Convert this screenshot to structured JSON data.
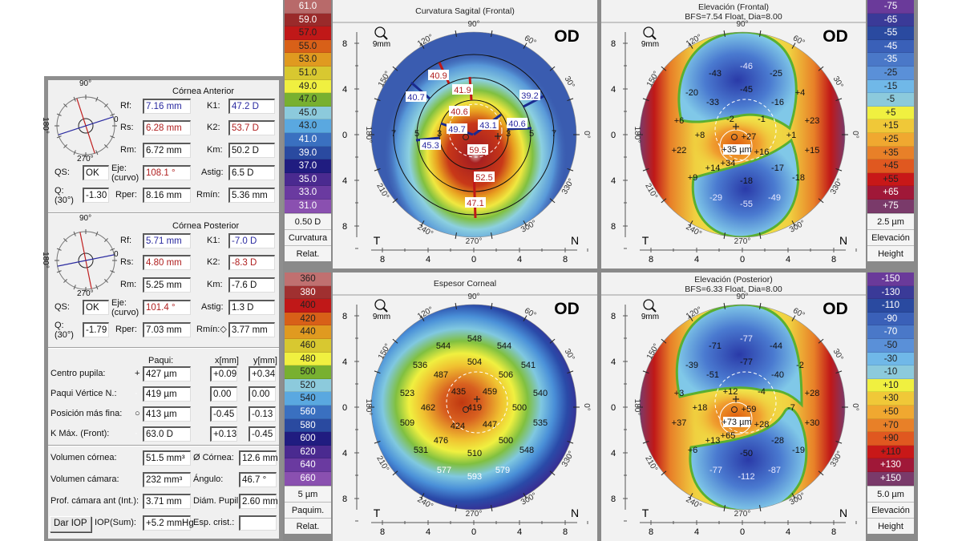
{
  "cornea_anterior": {
    "title": "Córnea Anterior",
    "compass": {
      "top": "90°",
      "bottom": "270°",
      "left": "180°",
      "right": "0"
    },
    "fields": [
      {
        "label": "Rf:",
        "value": "7.16 mm",
        "color": "#2a2aa0"
      },
      {
        "label": "K1:",
        "value": "47.2 D",
        "color": "#2a2aa0"
      },
      {
        "label": "Rs:",
        "value": "6.28 mm",
        "color": "#b02020"
      },
      {
        "label": "K2:",
        "value": "53.7 D",
        "color": "#b02020"
      },
      {
        "label": "Rm:",
        "value": "6.72 mm"
      },
      {
        "label": "Km:",
        "value": "50.2 D"
      },
      {
        "label": "QS:",
        "value": "OK"
      },
      {
        "label": "Eje:\n(curvo)",
        "value": "108.1 °",
        "color": "#b02020"
      },
      {
        "label": "Astig:",
        "value": "6.5 D"
      },
      {
        "label": "Q:\n(30°)",
        "value": "-1.30"
      },
      {
        "label": "Rper:",
        "value": "8.16 mm"
      },
      {
        "label": "Rmín:",
        "value": "5.36 mm"
      }
    ]
  },
  "cornea_posterior": {
    "title": "Córnea Posterior",
    "compass": {
      "top": "90°",
      "bottom": "270°",
      "left": "180°",
      "right": "0"
    },
    "fields": [
      {
        "label": "Rf:",
        "value": "5.71 mm",
        "color": "#2a2aa0"
      },
      {
        "label": "K1:",
        "value": "-7.0 D",
        "color": "#2a2aa0"
      },
      {
        "label": "Rs:",
        "value": "4.80 mm",
        "color": "#b02020"
      },
      {
        "label": "K2:",
        "value": "-8.3 D",
        "color": "#b02020"
      },
      {
        "label": "Rm:",
        "value": "5.25 mm"
      },
      {
        "label": "Km:",
        "value": "-7.6 D"
      },
      {
        "label": "QS:",
        "value": "OK"
      },
      {
        "label": "Eje:\n(curvo)",
        "value": "101.4 °",
        "color": "#b02020"
      },
      {
        "label": "Astig:",
        "value": "1.3 D"
      },
      {
        "label": "Q:\n(30°)",
        "value": "-1.79"
      },
      {
        "label": "Rper:",
        "value": "7.03 mm"
      },
      {
        "label": "Rmín:◇",
        "value": "3.77 mm"
      }
    ]
  },
  "pachy": {
    "headers": [
      "Paqui:",
      "x[mm]",
      "y[mm]"
    ],
    "rows": [
      {
        "label": "Centro pupila:",
        "marker": "+",
        "value": "427 µm",
        "x": "+0.09",
        "y": "+0.34"
      },
      {
        "label": "Paqui Vértice N.:",
        "marker": "·",
        "value": "419 µm",
        "x": "0.00",
        "y": "0.00"
      },
      {
        "label": "Posición más fina:",
        "marker": "○",
        "value": "413 µm",
        "x": "-0.45",
        "y": "-0.13"
      },
      {
        "label": "K Máx. (Front):",
        "marker": "·",
        "value": "63.0 D",
        "x": "+0.13",
        "y": "-0.45"
      }
    ]
  },
  "volumes": {
    "rows": [
      {
        "label": "Volumen córnea:",
        "value": "51.5 mm³",
        "label2": "Ø Córnea:",
        "value2": "12.6 mm"
      },
      {
        "label": "Volumen cámara:",
        "value": "232 mm³",
        "label2": "Ángulo:",
        "value2": "46.7 °"
      },
      {
        "label": "Prof. cámara ant (Int.):",
        "value": "3.71 mm",
        "label2": "Diám. Pupil:",
        "value2": "2.60 mm"
      },
      {
        "label": "IOP(Sum):",
        "value": "+5.2 mmHg",
        "label2": "Esp. crist.:",
        "value2": ""
      }
    ],
    "iop_button": "Dar IOP"
  },
  "scales": [
    {
      "labels": [
        "61.0",
        "59.0",
        "57.0",
        "55.0",
        "53.0",
        "51.0",
        "49.0",
        "47.0",
        "45.0",
        "43.0",
        "41.0",
        "39.0",
        "37.0",
        "35.0",
        "33.0",
        "31.0"
      ],
      "colors": [
        "#b86a6a",
        "#9a2a2a",
        "#c01818",
        "#d86018",
        "#e09a20",
        "#d8c830",
        "#f0f040",
        "#78b030",
        "#8ccadc",
        "#5aa8e0",
        "#3a70c0",
        "#2a4aa0",
        "#201c80",
        "#4a2a90",
        "#6a3aa0",
        "#8a50b0"
      ],
      "footer": [
        "0.50 D",
        "Curvatura",
        "Relat."
      ]
    },
    {
      "labels": [
        "-75",
        "-65",
        "-55",
        "-45",
        "-35",
        "-25",
        "-15",
        "-5",
        "+5",
        "+15",
        "+25",
        "+35",
        "+45",
        "+55",
        "+65",
        "+75"
      ],
      "colors": [
        "#6a3a9a",
        "#3a3a98",
        "#2a4aa0",
        "#3a60b8",
        "#4a78c8",
        "#5a90d8",
        "#70b8e8",
        "#8ccadc",
        "#f0f040",
        "#f0c838",
        "#f0a830",
        "#e88028",
        "#e05820",
        "#c81818",
        "#a01838",
        "#7a3a6a"
      ],
      "footer": [
        "2.5 µm",
        "Elevación",
        "Height"
      ]
    },
    {
      "labels": [
        "360",
        "380",
        "400",
        "420",
        "440",
        "460",
        "480",
        "500",
        "520",
        "540",
        "560",
        "580",
        "600",
        "620",
        "640",
        "660"
      ],
      "colors": [
        "#c07070",
        "#a03030",
        "#c01818",
        "#d86018",
        "#e09a20",
        "#d8c830",
        "#f0f040",
        "#78b030",
        "#8ccadc",
        "#5aa8e0",
        "#3a70c0",
        "#2a4aa0",
        "#201c80",
        "#4a2a90",
        "#6a3aa0",
        "#8a50b0"
      ],
      "footer": [
        "5 µm",
        "Paquim.",
        "Relat."
      ]
    },
    {
      "labels": [
        "-150",
        "-130",
        "-110",
        "-90",
        "-70",
        "-50",
        "-30",
        "-10",
        "+10",
        "+30",
        "+50",
        "+70",
        "+90",
        "+110",
        "+130",
        "+150"
      ],
      "colors": [
        "#6a3a9a",
        "#3a3a98",
        "#2a4aa0",
        "#3a60b8",
        "#4a78c8",
        "#5a90d8",
        "#70b8e8",
        "#8ccadc",
        "#f0f040",
        "#f0c838",
        "#f0a830",
        "#e88028",
        "#e05820",
        "#c81818",
        "#a01838",
        "#7a3a6a"
      ],
      "footer": [
        "5.0 µm",
        "Elevación",
        "Height"
      ]
    }
  ],
  "maps": [
    {
      "type": "curvature",
      "title": "Curvatura Sagital (Frontal)",
      "subtitle": "",
      "eye": "OD",
      "zoom": "9mm",
      "ring_labels": [
        "7",
        "5",
        "3",
        "3",
        "5",
        "7"
      ],
      "values": [
        {
          "v": "40.9",
          "c": "#b02020"
        },
        {
          "v": "41.9",
          "c": "#b02020"
        },
        {
          "v": "40.7",
          "c": "#2a2aa0"
        },
        {
          "v": "39.2",
          "c": "#2a2aa0"
        },
        {
          "v": "40.6",
          "c": "#2a2aa0"
        },
        {
          "v": "40.6",
          "c": "#b02020"
        },
        {
          "v": "49.7",
          "c": "#2a2aa0"
        },
        {
          "v": "43.1",
          "c": "#2a2aa0"
        },
        {
          "v": "45.3",
          "c": "#2a2aa0"
        },
        {
          "v": "59.5",
          "c": "#b02020"
        },
        {
          "v": "52.5",
          "c": "#b02020"
        },
        {
          "v": "47.1",
          "c": "#b02020"
        }
      ]
    },
    {
      "type": "elevation",
      "title": "Elevación (Frontal)",
      "subtitle": "BFS=7.54 Float, Dia=8.00",
      "eye": "OD",
      "zoom": "9mm",
      "center_box": "+35 µm",
      "values": [
        "-46",
        "-43",
        "-25",
        "-20",
        "-45",
        "+4",
        "-33",
        "-16",
        "+6",
        "-2",
        "-1",
        "+23",
        "+8",
        "+27",
        "+1",
        "+22",
        "+34",
        "+16",
        "+15",
        "+14",
        "-17",
        "+9",
        "-18",
        "-18",
        "-29",
        "-49",
        "-55"
      ]
    },
    {
      "type": "pachy",
      "title": "Espesor Corneal",
      "subtitle": "",
      "eye": "OD",
      "zoom": "9mm",
      "values": [
        "548",
        "544",
        "544",
        "536",
        "504",
        "541",
        "487",
        "506",
        "523",
        "435",
        "459",
        "540",
        "462",
        "419",
        "500",
        "509",
        "424",
        "447",
        "535",
        "476",
        "500",
        "531",
        "510",
        "548",
        "577",
        "579",
        "593"
      ]
    },
    {
      "type": "elevation2",
      "title": "Elevación (Posterior)",
      "subtitle": "BFS=6.33 Float, Dia=8.00",
      "eye": "OD",
      "zoom": "9mm",
      "center_box": "+73 µm",
      "values": [
        "-77",
        "-71",
        "-44",
        "-39",
        "-77",
        "-2",
        "-51",
        "-40",
        "+3",
        "+12",
        "-4",
        "+28",
        "+18",
        "+59",
        "-7",
        "+37",
        "+65",
        "+28",
        "+30",
        "+13",
        "-28",
        "+6",
        "-50",
        "-19",
        "-77",
        "-87",
        "-112"
      ]
    }
  ],
  "map_axes": {
    "angles": [
      "90°",
      "120°",
      "60°",
      "150°",
      "30°",
      "180°",
      "0°",
      "210°",
      "330°",
      "240°",
      "300°",
      "270°"
    ],
    "y_ticks": [
      "8",
      "4",
      "0",
      "4",
      "8"
    ],
    "x_ticks": [
      "8",
      "4",
      "0",
      "4",
      "8"
    ],
    "left": "T",
    "right": "N"
  }
}
